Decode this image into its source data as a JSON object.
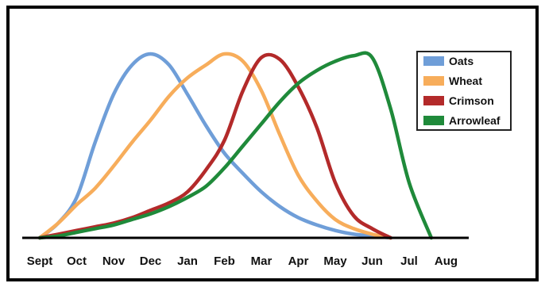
{
  "chart_data": {
    "type": "line",
    "title": "",
    "xlabel": "",
    "ylabel": "",
    "categories": [
      "Sept",
      "Oct",
      "Nov",
      "Dec",
      "Jan",
      "Feb",
      "Mar",
      "Apr",
      "May",
      "Jun",
      "Jul",
      "Aug"
    ],
    "ylim": [
      0,
      100
    ],
    "grid": false,
    "y_axis_visible": false,
    "legend_position": "top-right",
    "series": [
      {
        "name": "Oats",
        "color": "#6f9ed8",
        "points": [
          [
            0,
            0
          ],
          [
            0.5,
            8
          ],
          [
            1,
            22
          ],
          [
            1.5,
            52
          ],
          [
            2,
            78
          ],
          [
            2.5,
            94
          ],
          [
            3,
            100
          ],
          [
            3.5,
            94
          ],
          [
            4,
            78
          ],
          [
            4.5,
            61
          ],
          [
            5,
            46
          ],
          [
            5.5,
            35
          ],
          [
            6,
            25
          ],
          [
            6.5,
            17
          ],
          [
            7,
            11
          ],
          [
            7.5,
            7
          ],
          [
            8,
            4
          ],
          [
            8.5,
            2
          ],
          [
            9,
            1
          ],
          [
            9.5,
            0
          ]
        ]
      },
      {
        "name": "Wheat",
        "color": "#f7ad5b",
        "points": [
          [
            0,
            0
          ],
          [
            0.5,
            8
          ],
          [
            1,
            18
          ],
          [
            1.5,
            27
          ],
          [
            2,
            39
          ],
          [
            2.5,
            52
          ],
          [
            3,
            64
          ],
          [
            3.5,
            77
          ],
          [
            4,
            87
          ],
          [
            4.5,
            94
          ],
          [
            5,
            100
          ],
          [
            5.5,
            96
          ],
          [
            6,
            80
          ],
          [
            6.5,
            56
          ],
          [
            7,
            34
          ],
          [
            7.5,
            20
          ],
          [
            8,
            10
          ],
          [
            8.5,
            5
          ],
          [
            9,
            2
          ],
          [
            9.5,
            0
          ]
        ]
      },
      {
        "name": "Crimson",
        "color": "#b32a2a",
        "points": [
          [
            0,
            0
          ],
          [
            0.5,
            2
          ],
          [
            1,
            4
          ],
          [
            1.5,
            6
          ],
          [
            2,
            8
          ],
          [
            2.5,
            11
          ],
          [
            3,
            15
          ],
          [
            3.5,
            19
          ],
          [
            4,
            25
          ],
          [
            4.5,
            37
          ],
          [
            5,
            53
          ],
          [
            5.5,
            80
          ],
          [
            6,
            98
          ],
          [
            6.5,
            97
          ],
          [
            7,
            82
          ],
          [
            7.5,
            60
          ],
          [
            8,
            30
          ],
          [
            8.5,
            12
          ],
          [
            9,
            5
          ],
          [
            9.5,
            0
          ]
        ]
      },
      {
        "name": "Arrowleaf",
        "color": "#1f8a3a",
        "points": [
          [
            0,
            0
          ],
          [
            0.5,
            1
          ],
          [
            1,
            3
          ],
          [
            1.5,
            5
          ],
          [
            2,
            7
          ],
          [
            2.5,
            10
          ],
          [
            3,
            13
          ],
          [
            3.5,
            17
          ],
          [
            4,
            22
          ],
          [
            4.5,
            28
          ],
          [
            5,
            38
          ],
          [
            5.5,
            50
          ],
          [
            6,
            62
          ],
          [
            6.5,
            74
          ],
          [
            7,
            84
          ],
          [
            7.5,
            91
          ],
          [
            8,
            96
          ],
          [
            8.5,
            99
          ],
          [
            9,
            98
          ],
          [
            9.5,
            70
          ],
          [
            10,
            30
          ],
          [
            10.6,
            0
          ]
        ]
      }
    ]
  }
}
